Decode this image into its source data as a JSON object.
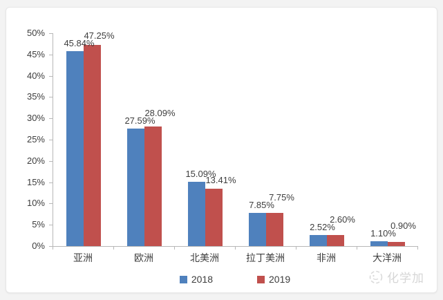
{
  "page": {
    "watermark": {
      "text": "化学加"
    }
  },
  "chart_data": {
    "type": "bar",
    "title": "",
    "xlabel": "",
    "ylabel": "",
    "categories": [
      "亚洲",
      "欧洲",
      "北美洲",
      "拉丁美洲",
      "非洲",
      "大洋洲"
    ],
    "series": [
      {
        "name": "2018",
        "color": "#4F81BD",
        "values": [
          45.84,
          27.59,
          15.09,
          7.85,
          2.52,
          1.1
        ],
        "labels": [
          "45.84%",
          "27.59%",
          "15.09%",
          "7.85%",
          "2.52%",
          "1.10%"
        ]
      },
      {
        "name": "2019",
        "color": "#C0504D",
        "values": [
          47.25,
          28.09,
          13.41,
          7.75,
          2.6,
          0.9
        ],
        "labels": [
          "47.25%",
          "28.09%",
          "13.41%",
          "7.75%",
          "2.60%",
          "0.90%"
        ]
      }
    ],
    "ylim": [
      0,
      50
    ],
    "ytick_step": 5,
    "yticks": [
      "0%",
      "5%",
      "10%",
      "15%",
      "20%",
      "25%",
      "30%",
      "35%",
      "40%",
      "45%",
      "50%"
    ],
    "grid": false,
    "legend_position": "bottom-center"
  }
}
